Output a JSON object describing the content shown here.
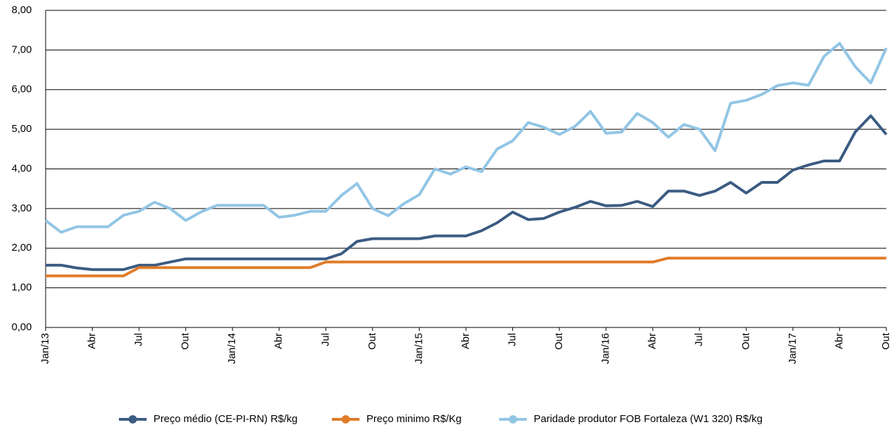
{
  "chart_data": {
    "type": "line",
    "categories": [
      "Jan/13",
      null,
      null,
      "Abr",
      null,
      null,
      "Jul",
      null,
      null,
      "Out",
      null,
      null,
      "Jan/14",
      null,
      null,
      "Abr",
      null,
      null,
      "Jul",
      null,
      null,
      "Out",
      null,
      null,
      "Jan/15",
      null,
      null,
      "Abr",
      null,
      null,
      "Jul",
      null,
      null,
      "Out",
      null,
      null,
      "Jan/16",
      null,
      null,
      "Abr",
      null,
      null,
      "Jul",
      null,
      null,
      "Out",
      null,
      null,
      "Jan/17",
      null,
      null,
      "Abr",
      null,
      null,
      "Out"
    ],
    "series": [
      {
        "name": "Preço médio (CE-PI-RN) R$/kg",
        "color": "#3b5b82",
        "values": [
          1.57,
          1.57,
          1.5,
          1.46,
          1.46,
          1.46,
          1.57,
          1.57,
          1.65,
          1.73,
          1.73,
          1.73,
          1.73,
          1.73,
          1.73,
          1.73,
          1.73,
          1.73,
          1.73,
          1.86,
          2.17,
          2.24,
          2.24,
          2.24,
          2.24,
          2.31,
          2.31,
          2.31,
          2.44,
          2.64,
          2.91,
          2.72,
          2.75,
          2.91,
          3.03,
          3.18,
          3.07,
          3.08,
          3.18,
          3.05,
          3.44,
          3.44,
          3.33,
          3.44,
          3.66,
          3.39,
          3.66,
          3.66,
          3.97,
          4.1,
          4.2,
          4.2,
          4.93,
          5.34,
          4.87
        ]
      },
      {
        "name": "Preço minimo R$/Kg",
        "color": "#e07b28",
        "values": [
          1.3,
          1.3,
          1.3,
          1.3,
          1.3,
          1.3,
          1.51,
          1.51,
          1.51,
          1.51,
          1.51,
          1.51,
          1.51,
          1.51,
          1.51,
          1.51,
          1.51,
          1.51,
          1.65,
          1.65,
          1.65,
          1.65,
          1.65,
          1.65,
          1.65,
          1.65,
          1.65,
          1.65,
          1.65,
          1.65,
          1.65,
          1.65,
          1.65,
          1.65,
          1.65,
          1.65,
          1.65,
          1.65,
          1.65,
          1.65,
          1.75,
          1.75,
          1.75,
          1.75,
          1.75,
          1.75,
          1.75,
          1.75,
          1.75,
          1.75,
          1.75,
          1.75,
          1.75,
          1.75,
          1.75
        ]
      },
      {
        "name": "Paridade produtor FOB Fortaleza (W1 320) R$/kg",
        "color": "#92c5e5",
        "values": [
          2.7,
          2.4,
          2.54,
          2.54,
          2.54,
          2.83,
          2.93,
          3.16,
          3.0,
          2.7,
          2.92,
          3.08,
          3.08,
          3.08,
          3.08,
          2.78,
          2.83,
          2.93,
          2.93,
          3.33,
          3.63,
          3.0,
          2.82,
          3.12,
          3.35,
          4.0,
          3.87,
          4.05,
          3.93,
          4.5,
          4.71,
          5.17,
          5.05,
          4.87,
          5.07,
          5.45,
          4.9,
          4.93,
          5.4,
          5.17,
          4.8,
          5.12,
          5.0,
          4.46,
          5.66,
          5.73,
          5.88,
          6.1,
          6.17,
          6.11,
          6.84,
          7.17,
          6.58,
          6.17,
          7.05
        ]
      }
    ],
    "ylim": [
      0,
      8
    ],
    "yticks": [
      {
        "value": 0,
        "label": "0,00"
      },
      {
        "value": 1,
        "label": "1,00"
      },
      {
        "value": 2,
        "label": "2,00"
      },
      {
        "value": 3,
        "label": "3,00"
      },
      {
        "value": 4,
        "label": "4,00"
      },
      {
        "value": 5,
        "label": "5,00"
      },
      {
        "value": 6,
        "label": "6,00"
      },
      {
        "value": 7,
        "label": "7,00"
      },
      {
        "value": 8,
        "label": "8,00"
      }
    ],
    "grid": true,
    "legend": "bottom"
  }
}
